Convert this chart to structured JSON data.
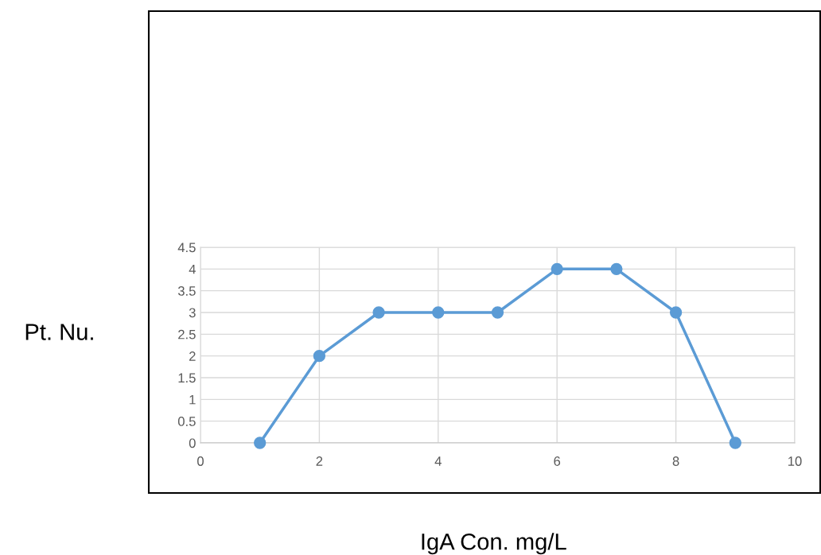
{
  "chart_data": {
    "type": "line",
    "xlabel": "IgA Con. mg/L",
    "ylabel": "Pt. Nu.",
    "x": [
      1,
      2,
      3,
      4,
      5,
      6,
      7,
      8,
      9
    ],
    "series": [
      {
        "color": "#5b9bd5",
        "values": [
          0,
          2,
          3,
          3,
          3,
          4,
          4,
          3,
          0
        ]
      }
    ],
    "xlim": [
      0,
      10
    ],
    "xticks": [
      0,
      2,
      4,
      6,
      8,
      10
    ],
    "ylim": [
      0,
      4.5
    ],
    "yticks": [
      0,
      0.5,
      1,
      1.5,
      2,
      2.5,
      3,
      3.5,
      4,
      4.5
    ],
    "grid": true,
    "marker": "circle",
    "line_style": "solid"
  }
}
